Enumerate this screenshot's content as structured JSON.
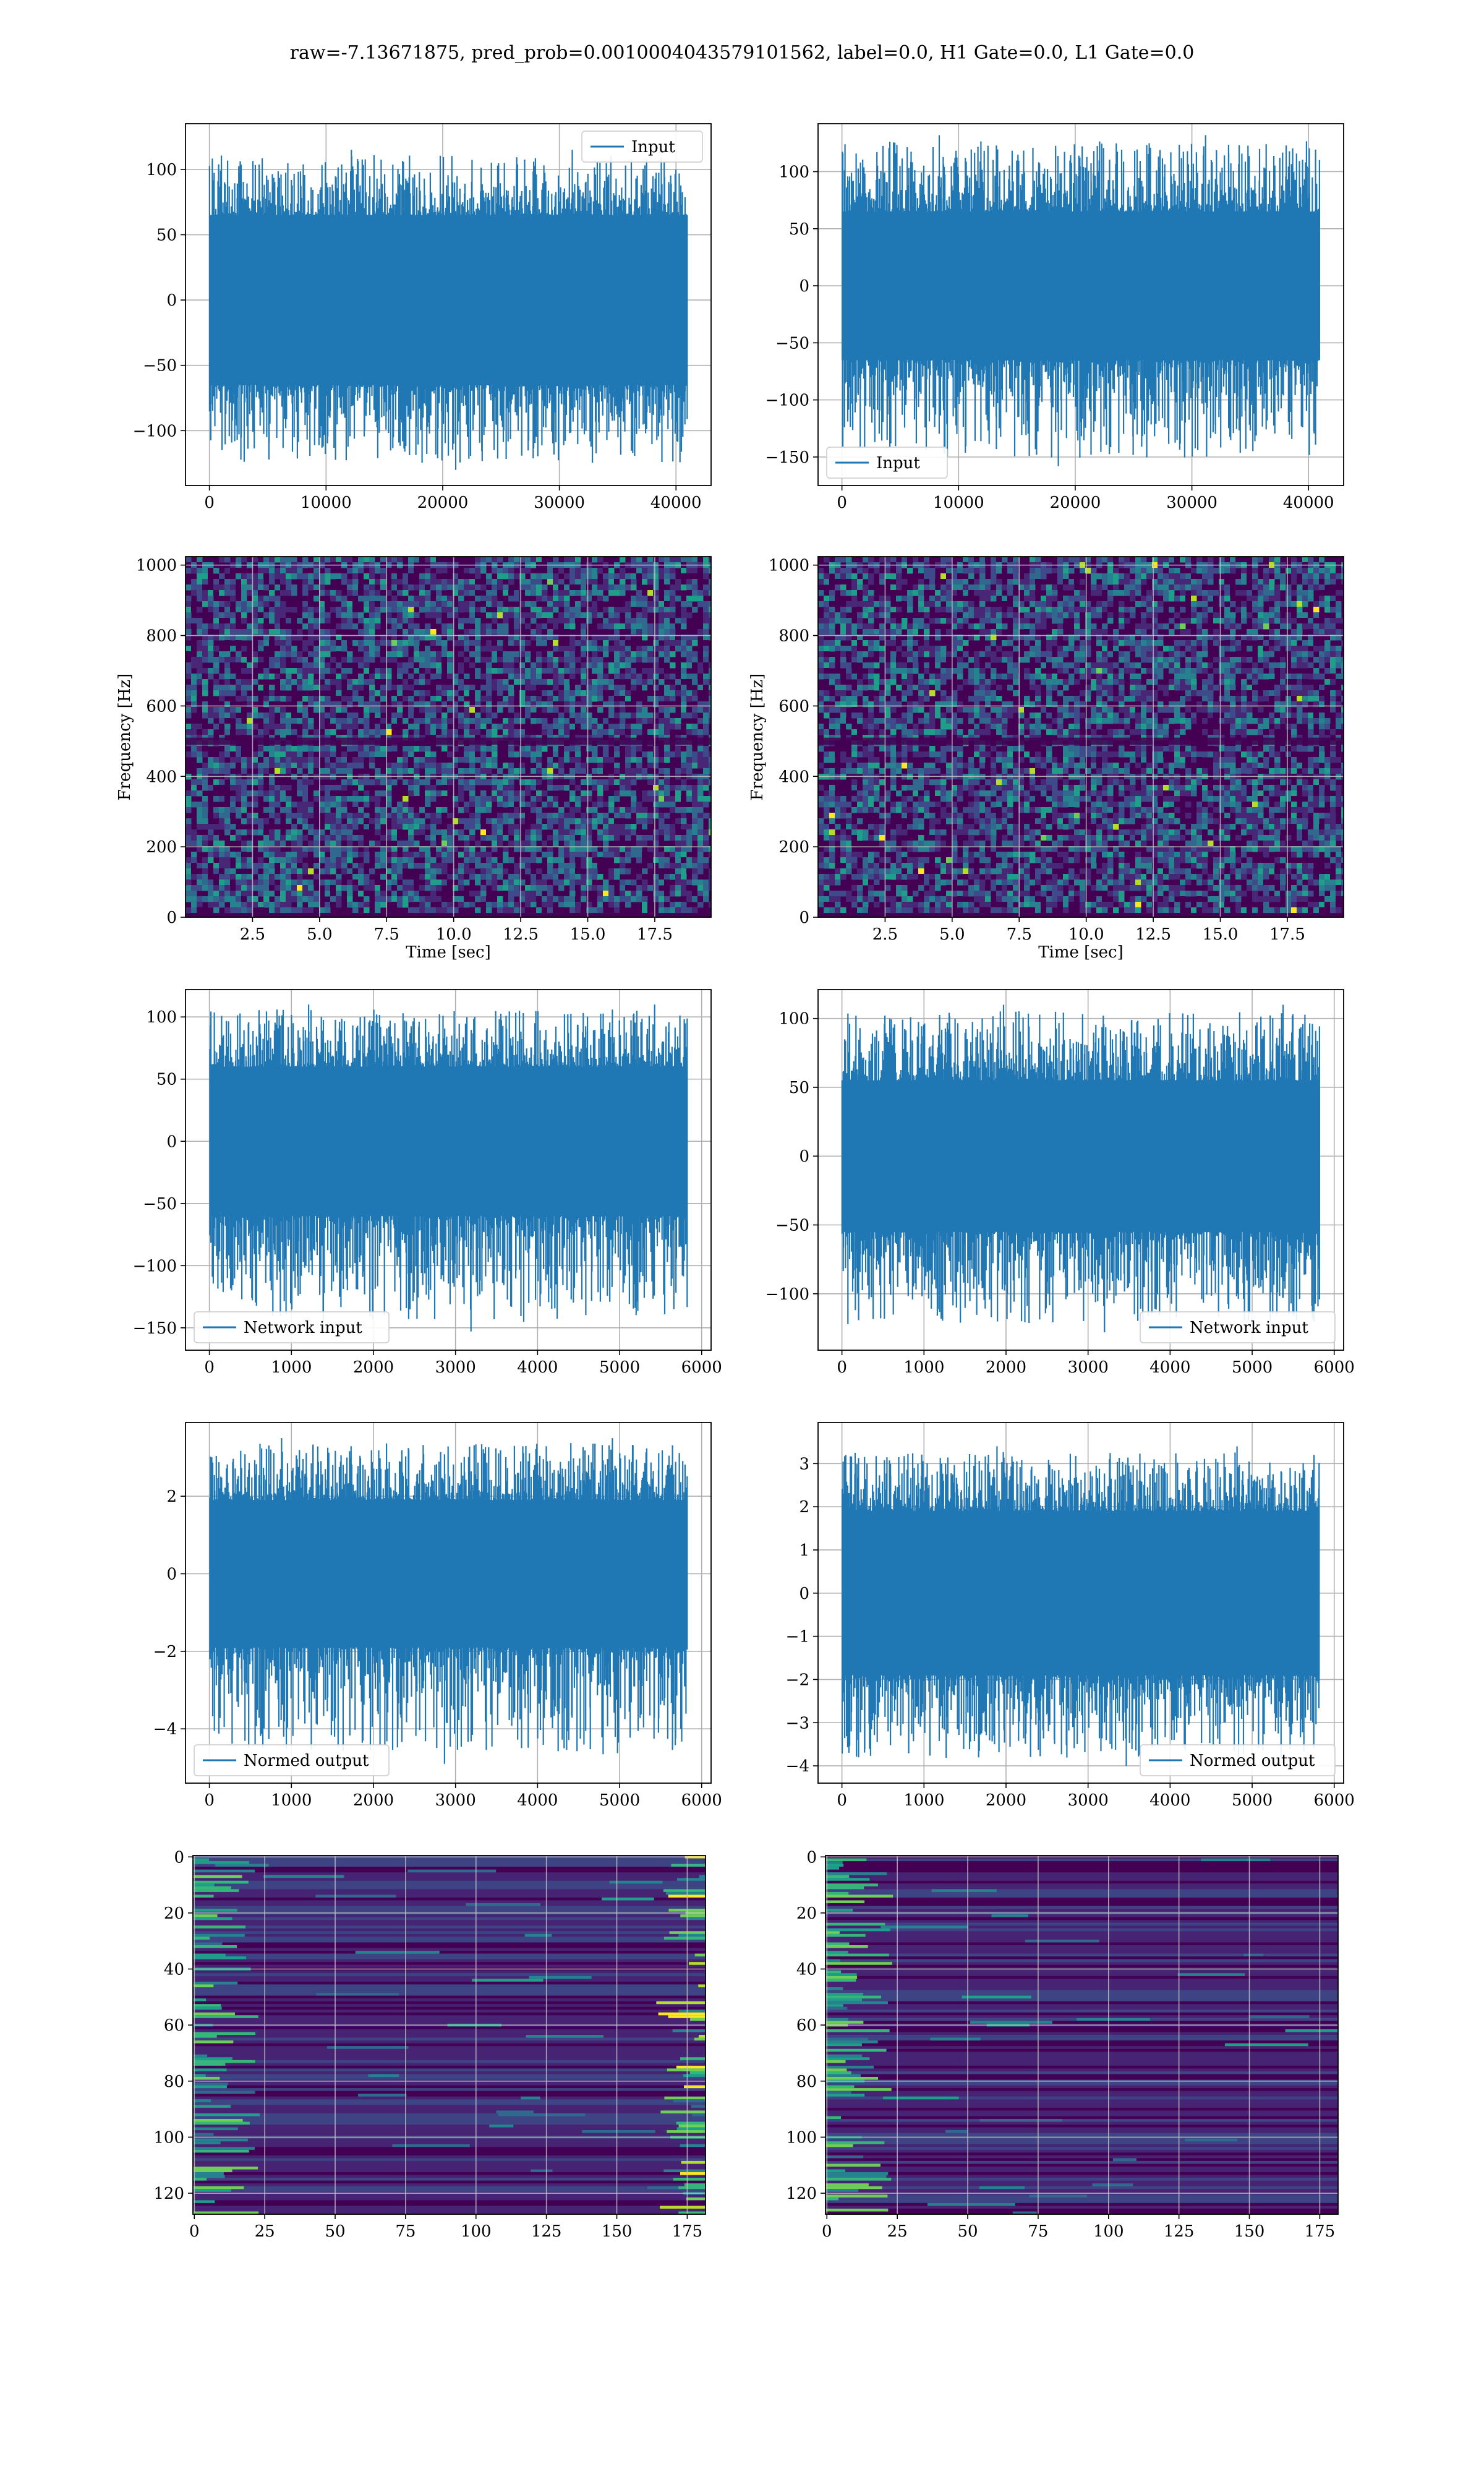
{
  "title": "raw=-7.13671875, pred_prob=0.0010004043579101562, label=0.0, H1 Gate=0.0, L1 Gate=0.0",
  "colors": {
    "line": "#1f77b4",
    "grid": "#b0b0b0",
    "viridis": [
      "#440154",
      "#482777",
      "#3e4a89",
      "#31688e",
      "#26828e",
      "#1f9e89",
      "#35b779",
      "#6ece58",
      "#b5de2b",
      "#fde725"
    ]
  },
  "chart_data": [
    {
      "type": "line",
      "row": 1,
      "col": 1,
      "legend": "Input",
      "legend_loc": "upper right",
      "x_range": [
        0,
        40960
      ],
      "xlim": [
        -2048,
        43008
      ],
      "ylim": [
        -142,
        135
      ],
      "xticks": [
        0,
        10000,
        20000,
        30000,
        40000
      ],
      "yticks": [
        -100,
        -50,
        0,
        50,
        100
      ],
      "envelope": {
        "typical": [
          -65,
          65
        ],
        "peak": [
          -130,
          115
        ]
      }
    },
    {
      "type": "line",
      "row": 1,
      "col": 2,
      "legend": "Input",
      "legend_loc": "lower left",
      "x_range": [
        0,
        40960
      ],
      "xlim": [
        -2048,
        43008
      ],
      "ylim": [
        -175,
        142
      ],
      "xticks": [
        0,
        10000,
        20000,
        30000,
        40000
      ],
      "yticks": [
        -150,
        -100,
        -50,
        0,
        50,
        100
      ],
      "envelope": {
        "typical": [
          -65,
          65
        ],
        "peak": [
          -158,
          132
        ]
      }
    },
    {
      "type": "heatmap",
      "row": 2,
      "col": 1,
      "xlabel": "Time [sec]",
      "ylabel": "Frequency [Hz]",
      "xlim": [
        0,
        19.6
      ],
      "ylim": [
        0,
        1024
      ],
      "xticks": [
        2.5,
        5.0,
        7.5,
        10.0,
        12.5,
        15.0,
        17.5
      ],
      "yticks": [
        0,
        200,
        400,
        600,
        800,
        1000
      ],
      "dark_band_hz": [
        490,
        510
      ]
    },
    {
      "type": "heatmap",
      "row": 2,
      "col": 2,
      "xlabel": "Time [sec]",
      "ylabel": "Frequency [Hz]",
      "xlim": [
        0,
        19.6
      ],
      "ylim": [
        0,
        1024
      ],
      "xticks": [
        2.5,
        5.0,
        7.5,
        10.0,
        12.5,
        15.0,
        17.5
      ],
      "yticks": [
        0,
        200,
        400,
        600,
        800,
        1000
      ],
      "dark_band_hz": [
        490,
        510
      ]
    },
    {
      "type": "line",
      "row": 3,
      "col": 1,
      "legend": "Network input",
      "legend_loc": "lower left",
      "x_range": [
        0,
        5824
      ],
      "xlim": [
        -291,
        6115
      ],
      "ylim": [
        -168,
        122
      ],
      "xticks": [
        0,
        1000,
        2000,
        3000,
        4000,
        5000,
        6000
      ],
      "yticks": [
        -150,
        -100,
        -50,
        0,
        50,
        100
      ],
      "envelope": {
        "typical": [
          -60,
          60
        ],
        "peak": [
          -153,
          110
        ]
      }
    },
    {
      "type": "line",
      "row": 3,
      "col": 2,
      "legend": "Network input",
      "legend_loc": "lower right",
      "x_range": [
        0,
        5824
      ],
      "xlim": [
        -291,
        6115
      ],
      "ylim": [
        -141,
        121
      ],
      "xticks": [
        0,
        1000,
        2000,
        3000,
        4000,
        5000,
        6000
      ],
      "yticks": [
        -100,
        -50,
        0,
        50,
        100
      ],
      "envelope": {
        "typical": [
          -55,
          55
        ],
        "peak": [
          -128,
          110
        ]
      }
    },
    {
      "type": "line",
      "row": 4,
      "col": 1,
      "legend": "Normed output",
      "legend_loc": "lower left",
      "x_range": [
        0,
        5824
      ],
      "xlim": [
        -291,
        6115
      ],
      "ylim": [
        -5.4,
        3.9
      ],
      "xticks": [
        0,
        1000,
        2000,
        3000,
        4000,
        5000,
        6000
      ],
      "yticks": [
        -4,
        -2,
        0,
        2
      ],
      "envelope": {
        "typical": [
          -1.9,
          1.9
        ],
        "peak": [
          -4.9,
          3.5
        ]
      }
    },
    {
      "type": "line",
      "row": 4,
      "col": 2,
      "legend": "Normed output",
      "legend_loc": "lower right",
      "x_range": [
        0,
        5824
      ],
      "xlim": [
        -291,
        6115
      ],
      "ylim": [
        -4.4,
        3.95
      ],
      "xticks": [
        0,
        1000,
        2000,
        3000,
        4000,
        5000,
        6000
      ],
      "yticks": [
        -4,
        -3,
        -2,
        -1,
        0,
        1,
        2,
        3
      ],
      "envelope": {
        "typical": [
          -1.9,
          1.9
        ],
        "peak": [
          -4.0,
          3.4
        ]
      }
    },
    {
      "type": "heatmap",
      "row": 5,
      "col": 1,
      "xlim": [
        -0.5,
        181.5
      ],
      "ylim": [
        127.5,
        -0.5
      ],
      "xticks": [
        0,
        25,
        50,
        75,
        100,
        125,
        150,
        175
      ],
      "yticks": [
        0,
        20,
        40,
        60,
        80,
        100,
        120
      ],
      "bright_edges": [
        "left",
        "right"
      ]
    },
    {
      "type": "heatmap",
      "row": 5,
      "col": 2,
      "xlim": [
        -0.5,
        181.5
      ],
      "ylim": [
        127.5,
        -0.5
      ],
      "xticks": [
        0,
        25,
        50,
        75,
        100,
        125,
        150,
        175
      ],
      "yticks": [
        0,
        20,
        40,
        60,
        80,
        100,
        120
      ],
      "bright_edges": [
        "left"
      ]
    }
  ]
}
